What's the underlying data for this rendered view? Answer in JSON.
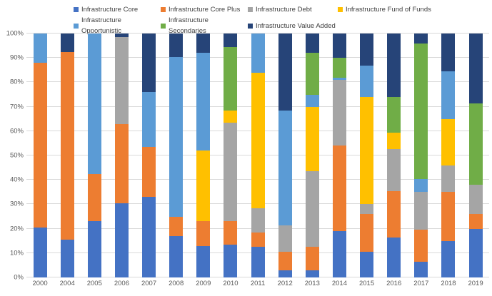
{
  "chart_data": {
    "type": "bar",
    "subtype": "stacked-100-percent-column",
    "stacked": true,
    "grid": true,
    "legend_position": "top",
    "title": "",
    "xlabel": "",
    "ylabel": "",
    "ylim": [
      0,
      100
    ],
    "yticks": [
      "0%",
      "10%",
      "20%",
      "30%",
      "40%",
      "50%",
      "60%",
      "70%",
      "80%",
      "90%",
      "100%"
    ],
    "categories": [
      "2000",
      "2004",
      "2005",
      "2006",
      "2007",
      "2008",
      "2009",
      "2010",
      "2011",
      "2012",
      "2013",
      "2014",
      "2015",
      "2016",
      "2017",
      "2018",
      "2019"
    ],
    "series": [
      {
        "name": "Infrastructure Core",
        "color": "#4472C4",
        "values": [
          20.5,
          15.5,
          23,
          30.5,
          33,
          17,
          13,
          13.5,
          12.5,
          3,
          3,
          19,
          10.5,
          16.5,
          6.5,
          15,
          20
        ]
      },
      {
        "name": "Infrastructure Core Plus",
        "color": "#ED7D31",
        "values": [
          67.5,
          77,
          19.5,
          32.5,
          20.5,
          8,
          10,
          9.5,
          6,
          7.5,
          9.5,
          35,
          15.5,
          19,
          13,
          20,
          6
        ]
      },
      {
        "name": "Infrastructure Debt",
        "color": "#A5A5A5",
        "values": [
          0,
          0,
          0,
          35.5,
          0,
          0,
          0,
          40.5,
          10,
          11,
          31,
          27,
          4,
          17,
          15.5,
          11,
          12
        ]
      },
      {
        "name": "Infrastructure Fund of Funds",
        "color": "#FFC000",
        "values": [
          0,
          0,
          0,
          0,
          0,
          0,
          29,
          5,
          55.5,
          0,
          26.5,
          0,
          44,
          7,
          0,
          19,
          0
        ]
      },
      {
        "name": "Infrastructure Opportunistic",
        "color": "#5B9BD5",
        "values": [
          12,
          0,
          57.5,
          0,
          22.5,
          65.5,
          40,
          0,
          16,
          47,
          5,
          1,
          13,
          0,
          5.5,
          19.5,
          0
        ]
      },
      {
        "name": "Infrastructure Secondaries",
        "color": "#70AD47",
        "values": [
          0,
          0,
          0,
          0,
          0,
          0,
          0,
          26,
          0,
          0,
          17,
          8,
          0,
          14.5,
          55.5,
          0,
          33.5
        ]
      },
      {
        "name": "Infrastructure Value Added",
        "color": "#264478",
        "values": [
          0,
          7.5,
          0,
          1.5,
          24,
          9.5,
          8,
          5.5,
          0,
          31.5,
          8,
          10,
          13,
          26,
          4,
          15.5,
          28.5
        ]
      }
    ],
    "legend_rows": [
      [
        "Infrastructure Core",
        "Infrastructure Core Plus",
        "Infrastructure Debt",
        "Infrastructure Fund of Funds"
      ],
      [
        "Infrastructure Opportunistic",
        "Infrastructure Secondaries",
        "Infrastructure Value Added"
      ]
    ]
  },
  "style": {
    "gridline_color": "#D9D9D9",
    "axis_text_color": "#595959",
    "legend_text_color": "#404040",
    "background_color": "#FFFFFF"
  }
}
